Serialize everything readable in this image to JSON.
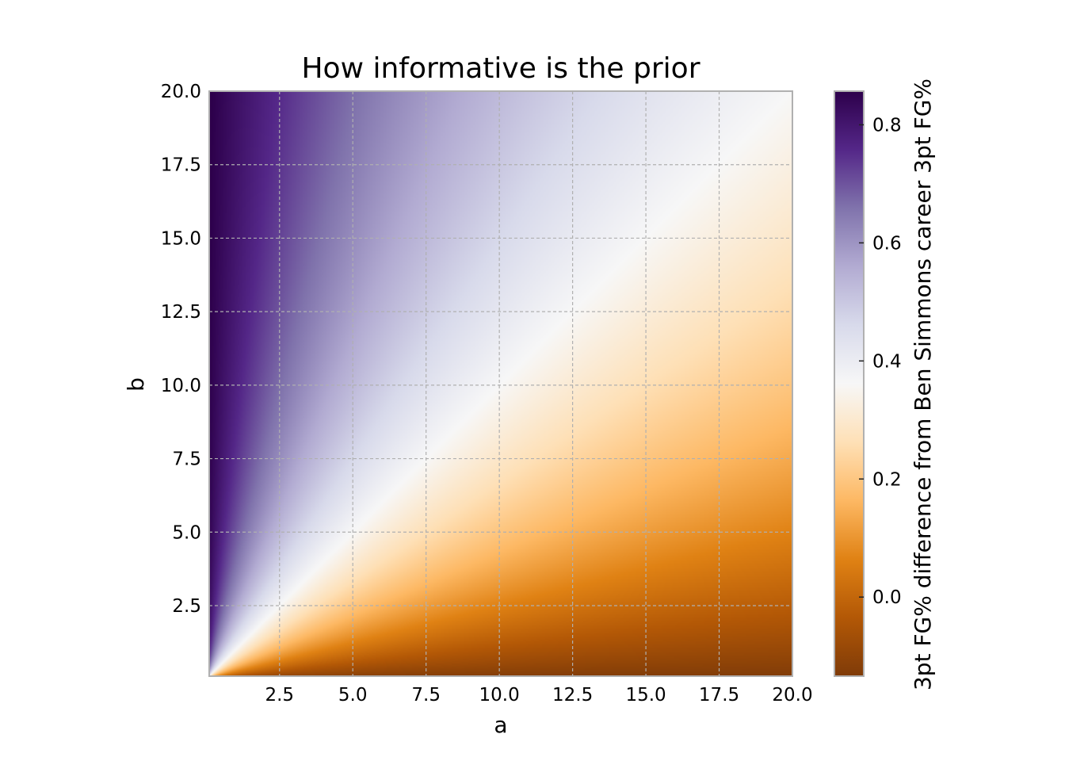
{
  "chart_data": {
    "type": "heatmap",
    "title": "How informative is the prior",
    "xlabel": "a",
    "ylabel": "b",
    "xlim": [
      0.1,
      20.0
    ],
    "ylim": [
      0.1,
      20.0
    ],
    "x_ticks": [
      2.5,
      5.0,
      7.5,
      10.0,
      12.5,
      15.0,
      17.5,
      20.0
    ],
    "y_ticks": [
      2.5,
      5.0,
      7.5,
      10.0,
      12.5,
      15.0,
      17.5,
      20.0
    ],
    "x_tick_labels": [
      "2.5",
      "5.0",
      "7.5",
      "10.0",
      "12.5",
      "15.0",
      "17.5",
      "20.0"
    ],
    "y_tick_labels": [
      "2.5",
      "5.0",
      "7.5",
      "10.0",
      "12.5",
      "15.0",
      "17.5",
      "20.0"
    ],
    "value_function": "a/(a+b) - 0.143",
    "grid": true,
    "colormap": "PuOr",
    "colorbar": {
      "label": "3pt FG% difference from Ben Simmons career 3pt FG%",
      "range": [
        -0.134,
        0.857
      ],
      "center": 0.357,
      "ticks": [
        0.0,
        0.2,
        0.4,
        0.6,
        0.8
      ],
      "tick_labels": [
        "0.0",
        "0.2",
        "0.4",
        "0.6",
        "0.8"
      ]
    },
    "colors": {
      "low": "#7f3b08",
      "mid": "#f7f7f7",
      "high": "#2d004b"
    }
  }
}
